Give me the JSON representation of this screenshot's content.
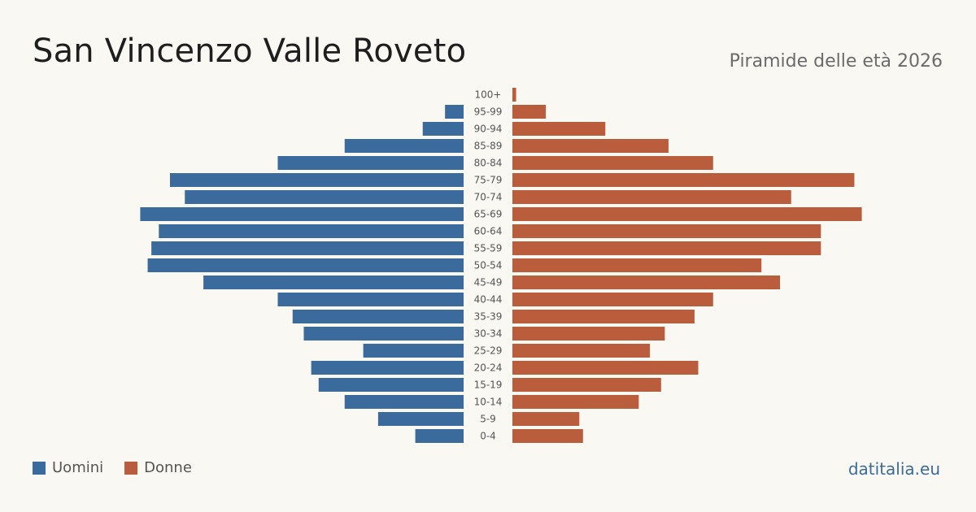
{
  "header": {
    "title": "San Vincenzo Valle Roveto",
    "subtitle": "Piramide delle età 2026"
  },
  "legend": {
    "men_label": "Uomini",
    "women_label": "Donne"
  },
  "source": "datitalia.eu",
  "colors": {
    "men": "#3b6b9c",
    "women": "#b95d3c",
    "age_label": "#555555"
  },
  "chart_data": {
    "type": "bar",
    "orientation": "horizontal-pyramid",
    "categories": [
      "100+",
      "95-99",
      "90-94",
      "85-89",
      "80-84",
      "75-79",
      "70-74",
      "65-69",
      "60-64",
      "55-59",
      "50-54",
      "45-49",
      "40-44",
      "35-39",
      "30-34",
      "25-29",
      "20-24",
      "15-19",
      "10-14",
      "5-9",
      "0-4"
    ],
    "series": [
      {
        "name": "Uomini",
        "values": [
          0,
          5,
          11,
          32,
          50,
          79,
          75,
          87,
          82,
          84,
          85,
          70,
          50,
          46,
          43,
          27,
          41,
          39,
          32,
          23,
          13
        ]
      },
      {
        "name": "Donne",
        "values": [
          1,
          9,
          25,
          42,
          54,
          92,
          75,
          94,
          83,
          83,
          67,
          72,
          54,
          49,
          41,
          37,
          50,
          40,
          34,
          18,
          19
        ]
      }
    ],
    "title": "",
    "xlabel": "",
    "ylabel": "",
    "grid": false
  }
}
